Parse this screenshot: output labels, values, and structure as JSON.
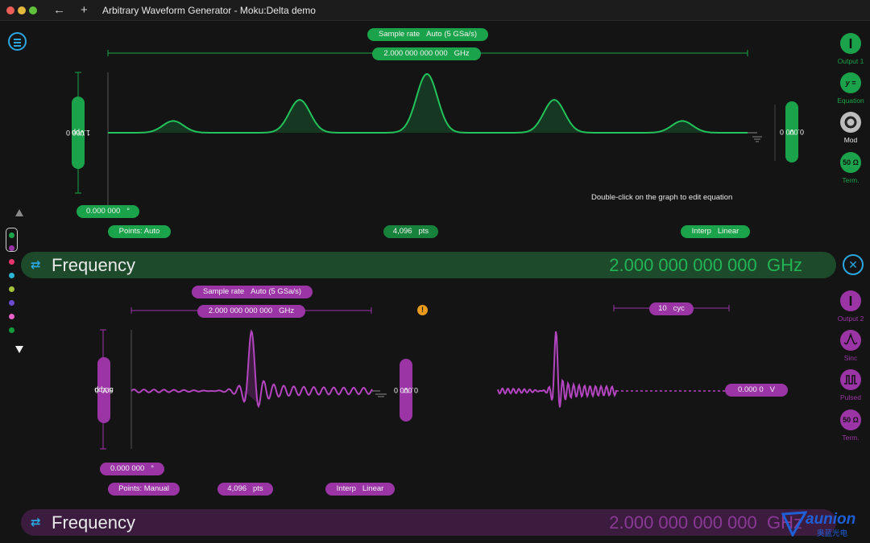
{
  "window": {
    "title": "Arbitrary Waveform Generator - Moku:Delta demo"
  },
  "ch1": {
    "sample_rate_label": "Sample rate",
    "sample_rate_value": "Auto (5 GSa/s)",
    "freq_pill": "2.000 000 000 000",
    "freq_unit": "GHz",
    "amplitude": "1.000 0",
    "amplitude_unit": "Vpp",
    "offset": "0.000 0",
    "offset_unit": "V",
    "phase": "0.000 000",
    "phase_unit": "°",
    "points_mode": "Points: Auto",
    "points_count": "4,096",
    "points_unit": "pts",
    "interp_label": "Interp",
    "interp_value": "Linear",
    "hint": "Double-click on the graph to edit equation",
    "peaks": [
      0.2,
      0.56,
      1.0,
      0.56,
      0.2
    ]
  },
  "freqbar1": {
    "label": "Frequency",
    "value": "2.000 000 000 000",
    "unit": "GHz"
  },
  "ch2": {
    "sample_rate_label": "Sample rate",
    "sample_rate_value": "Auto (5 GSa/s)",
    "freq_pill": "2.000 000 000 000",
    "freq_unit": "GHz",
    "amplitude": "500.0",
    "amplitude_unit": "mVpp",
    "offset": "0.000 0",
    "offset_unit": "V",
    "phase": "0.000 000",
    "phase_unit": "°",
    "points_mode": "Points: Manual",
    "points_count": "4,096",
    "points_unit": "pts",
    "interp_label": "Interp",
    "interp_value": "Linear",
    "burst_cycles": "10",
    "burst_unit": "cyc",
    "idle_level": "0.000 0",
    "idle_unit": "V"
  },
  "freqbar2": {
    "label": "Frequency",
    "value": "2.000 000 000 000",
    "unit": "GHz"
  },
  "right_panel_1": [
    {
      "label": "Output 1",
      "icon": "power-icon"
    },
    {
      "label": "Equation",
      "icon": "equation-icon",
      "glyph": "y ="
    },
    {
      "label": "Mod",
      "icon": "mod-ring-icon"
    },
    {
      "label": "Term.",
      "icon": "termination-icon",
      "glyph": "50 Ω"
    }
  ],
  "right_panel_2": [
    {
      "label": "Output 2",
      "icon": "power-icon"
    },
    {
      "label": "Sinc",
      "icon": "sinc-icon"
    },
    {
      "label": "Pulsed",
      "icon": "pulse-icon"
    },
    {
      "label": "Term.",
      "icon": "termination-icon",
      "glyph": "50 Ω"
    }
  ],
  "channel_colors": [
    "#1aa34a",
    "#9b35a6",
    "#e8356d",
    "#2bb6d6",
    "#a5c23a",
    "#6a4bd0",
    "#e862c7",
    "#129a3c"
  ],
  "logo": {
    "text": "aunion",
    "subtext": "奥蓝光电"
  }
}
